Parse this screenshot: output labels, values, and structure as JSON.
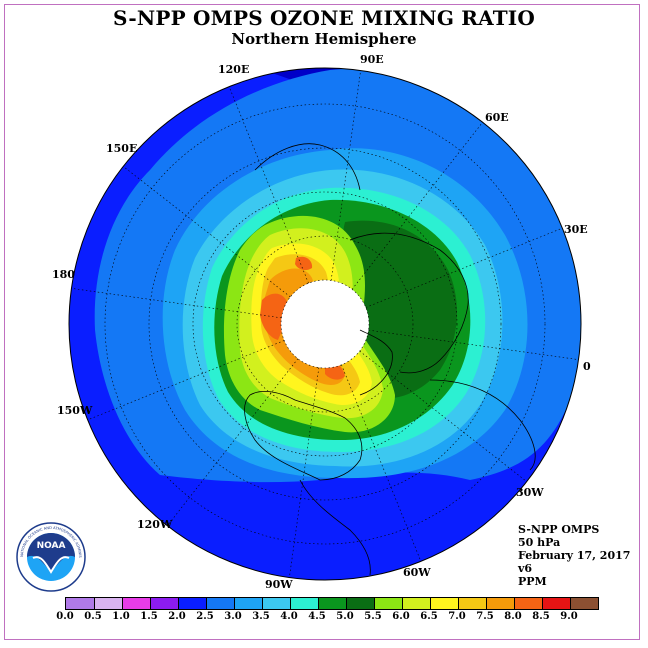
{
  "header": {
    "title": "S-NPP OMPS OZONE MIXING RATIO",
    "subtitle": "Northern Hemisphere"
  },
  "map": {
    "projection": "north polar stereographic",
    "center_value": "north pole (no data)",
    "longitude_labels": [
      {
        "key": "lon_90e",
        "text": "90E"
      },
      {
        "key": "lon_60e",
        "text": "60E"
      },
      {
        "key": "lon_30e",
        "text": "30E"
      },
      {
        "key": "lon_0",
        "text": "0"
      },
      {
        "key": "lon_30w",
        "text": "30W"
      },
      {
        "key": "lon_60w",
        "text": "60W"
      },
      {
        "key": "lon_90w",
        "text": "90W"
      },
      {
        "key": "lon_120w",
        "text": "120W"
      },
      {
        "key": "lon_150w",
        "text": "150W"
      },
      {
        "key": "lon_180",
        "text": "180"
      },
      {
        "key": "lon_150e",
        "text": "150E"
      },
      {
        "key": "lon_120e",
        "text": "120E"
      }
    ]
  },
  "info": {
    "instrument": "S-NPP OMPS",
    "level": "50 hPa",
    "date": "February 17, 2017",
    "version": "v6",
    "units": "PPM"
  },
  "logo": {
    "text": "NOAA",
    "ring_text": "NATIONAL OCEANIC AND ATMOSPHERIC ADMINISTRATION · U.S. DEPARTMENT OF COMMERCE"
  },
  "colorbar": {
    "labels": [
      "0.0",
      "0.5",
      "1.0",
      "1.5",
      "2.0",
      "2.5",
      "3.0",
      "3.5",
      "4.0",
      "4.5",
      "5.0",
      "5.5",
      "6.0",
      "6.5",
      "7.0",
      "7.5",
      "8.0",
      "8.5",
      "9.0"
    ],
    "colors": [
      "#b07ae8",
      "#d9b3f0",
      "#e83ce8",
      "#8c1cf0",
      "#0a1eff",
      "#1478f5",
      "#1ea4f5",
      "#3cc8f0",
      "#2cf0d2",
      "#0a961e",
      "#0a6e14",
      "#8ce614",
      "#d2f01e",
      "#fff51e",
      "#f5c814",
      "#f59b0a",
      "#f56414",
      "#e61414",
      "#8c5032"
    ]
  }
}
